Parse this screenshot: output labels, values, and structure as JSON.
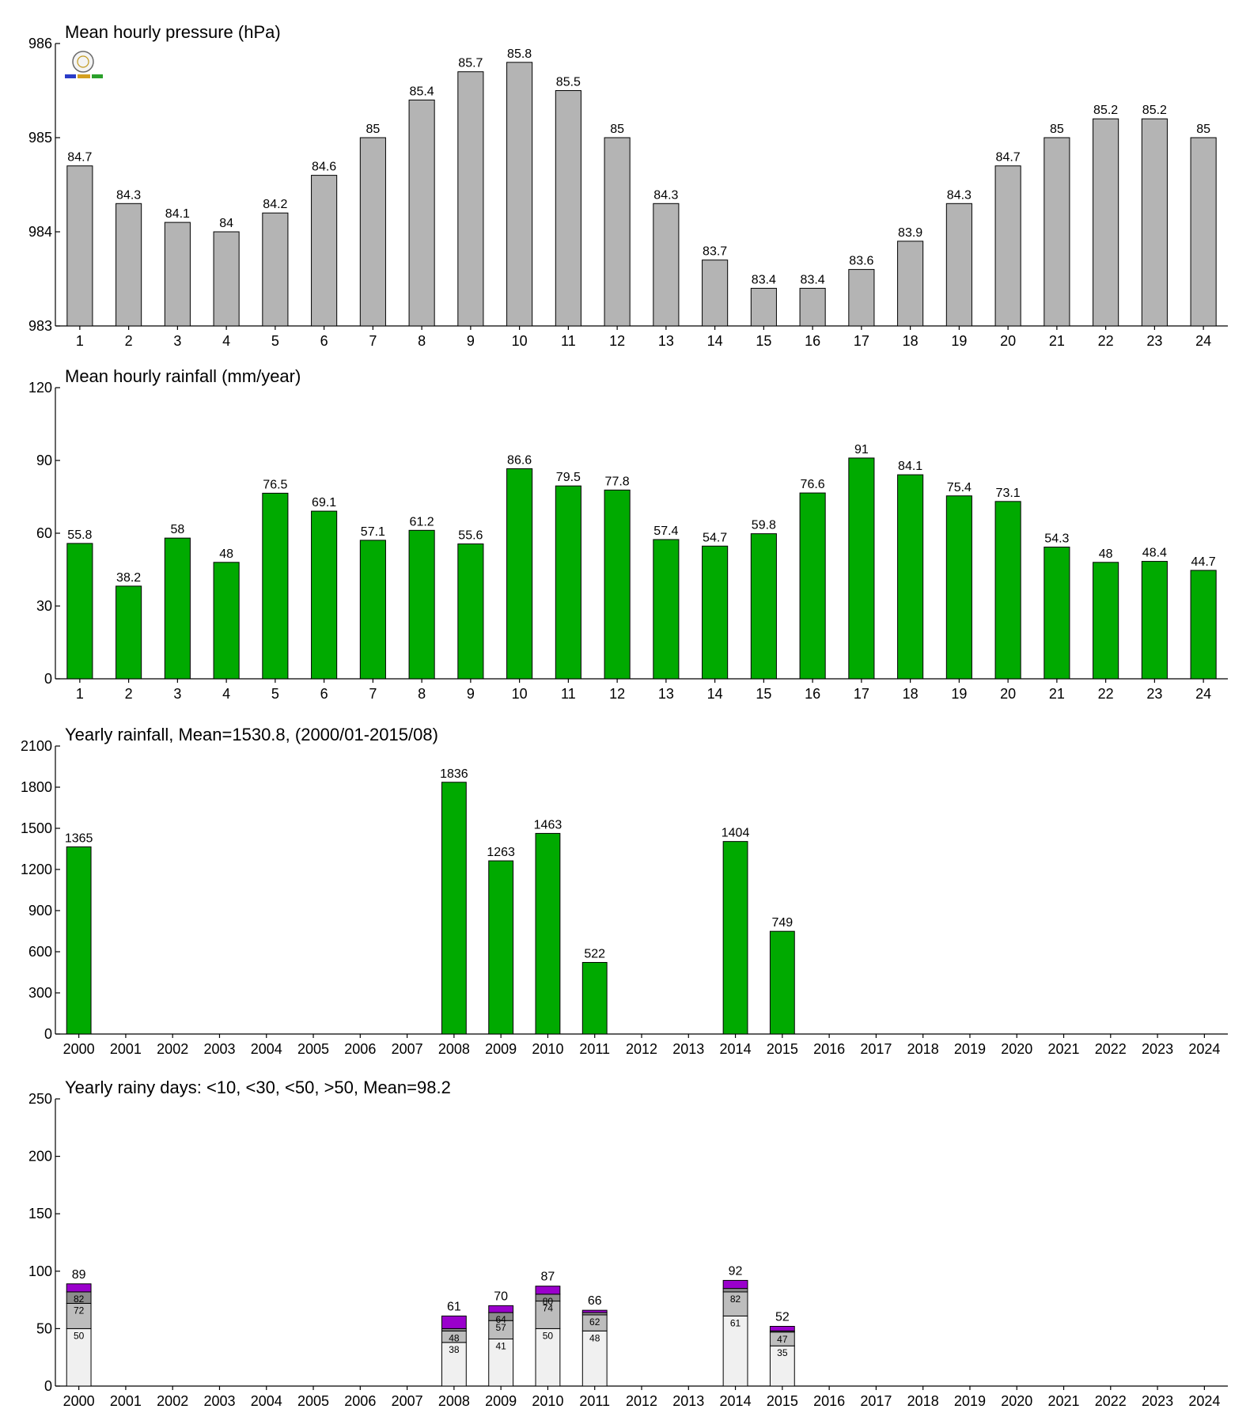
{
  "chart_data": [
    {
      "type": "bar",
      "title": "Mean hourly pressure (hPa)",
      "categories": [
        "1",
        "2",
        "3",
        "4",
        "5",
        "6",
        "7",
        "8",
        "9",
        "10",
        "11",
        "12",
        "13",
        "14",
        "15",
        "16",
        "17",
        "18",
        "19",
        "20",
        "21",
        "22",
        "23",
        "24"
      ],
      "values": [
        984.7,
        984.3,
        984.1,
        984.0,
        984.2,
        984.6,
        985.0,
        985.4,
        985.7,
        985.8,
        985.5,
        985.0,
        984.3,
        983.7,
        983.4,
        983.4,
        983.6,
        983.9,
        984.3,
        984.7,
        985.0,
        985.2,
        985.2,
        985.0
      ],
      "value_labels": [
        "84.7",
        "84.3",
        "84.1",
        "84",
        "84.2",
        "84.6",
        "85",
        "85.4",
        "85.7",
        "85.8",
        "85.5",
        "85",
        "84.3",
        "83.7",
        "83.4",
        "83.4",
        "83.6",
        "83.9",
        "84.3",
        "84.7",
        "85",
        "85.2",
        "85.2",
        "85"
      ],
      "ylim": [
        983,
        986
      ],
      "yticks": [
        "983",
        "984",
        "985",
        "986"
      ],
      "color": "#b4b4b4",
      "grid": false
    },
    {
      "type": "bar",
      "title": "Mean hourly rainfall (mm/year)",
      "categories": [
        "1",
        "2",
        "3",
        "4",
        "5",
        "6",
        "7",
        "8",
        "9",
        "10",
        "11",
        "12",
        "13",
        "14",
        "15",
        "16",
        "17",
        "18",
        "19",
        "20",
        "21",
        "22",
        "23",
        "24"
      ],
      "values": [
        55.8,
        38.2,
        58,
        48,
        76.5,
        69.1,
        57.1,
        61.2,
        55.6,
        86.6,
        79.5,
        77.8,
        57.4,
        54.7,
        59.8,
        76.6,
        91,
        84.1,
        75.4,
        73.1,
        54.3,
        48,
        48.4,
        44.7
      ],
      "value_labels": [
        "55.8",
        "38.2",
        "58",
        "48",
        "76.5",
        "69.1",
        "57.1",
        "61.2",
        "55.6",
        "86.6",
        "79.5",
        "77.8",
        "57.4",
        "54.7",
        "59.8",
        "76.6",
        "91",
        "84.1",
        "75.4",
        "73.1",
        "54.3",
        "48",
        "48.4",
        "44.7"
      ],
      "ylim": [
        0,
        120
      ],
      "yticks": [
        "0",
        "30",
        "60",
        "90",
        "120"
      ],
      "color": "#00aa00",
      "grid": false
    },
    {
      "type": "bar",
      "title": "Yearly rainfall, Mean=1530.8, (2000/01-2015/08)",
      "categories": [
        "2000",
        "2001",
        "2002",
        "2003",
        "2004",
        "2005",
        "2006",
        "2007",
        "2008",
        "2009",
        "2010",
        "2011",
        "2012",
        "2013",
        "2014",
        "2015",
        "2016",
        "2017",
        "2018",
        "2019",
        "2020",
        "2021",
        "2022",
        "2023",
        "2024"
      ],
      "values": [
        1365,
        null,
        null,
        null,
        null,
        null,
        null,
        null,
        1836,
        1263,
        1463,
        522,
        null,
        null,
        1404,
        749,
        null,
        null,
        null,
        null,
        null,
        null,
        null,
        null,
        null
      ],
      "value_labels": [
        "1365",
        "",
        "",
        "",
        "",
        "",
        "",
        "",
        "1836",
        "1263",
        "1463",
        "522",
        "",
        "",
        "1404",
        "749",
        "",
        "",
        "",
        "",
        "",
        "",
        "",
        "",
        ""
      ],
      "ylim": [
        0,
        2100
      ],
      "yticks": [
        "0",
        "300",
        "600",
        "900",
        "1200",
        "1500",
        "1800",
        "2100"
      ],
      "color": "#00aa00",
      "grid": false
    },
    {
      "type": "bar",
      "stacked": true,
      "title": "Yearly rainy days: <10, <30, <50, >50, Mean=98.2",
      "categories": [
        "2000",
        "2001",
        "2002",
        "2003",
        "2004",
        "2005",
        "2006",
        "2007",
        "2008",
        "2009",
        "2010",
        "2011",
        "2012",
        "2013",
        "2014",
        "2015",
        "2016",
        "2017",
        "2018",
        "2019",
        "2020",
        "2021",
        "2022",
        "2023",
        "2024"
      ],
      "cumulative": {
        "lt10": [
          50,
          null,
          null,
          null,
          null,
          null,
          null,
          null,
          38,
          41,
          50,
          48,
          null,
          null,
          61,
          35,
          null,
          null,
          null,
          null,
          null,
          null,
          null,
          null,
          null
        ],
        "lt30": [
          72,
          null,
          null,
          null,
          null,
          null,
          null,
          null,
          48,
          57,
          74,
          62,
          null,
          null,
          82,
          47,
          null,
          null,
          null,
          null,
          null,
          null,
          null,
          null,
          null
        ],
        "lt50": [
          82,
          null,
          null,
          null,
          null,
          null,
          null,
          null,
          50,
          64,
          80,
          64,
          null,
          null,
          85,
          48,
          null,
          null,
          null,
          null,
          null,
          null,
          null,
          null,
          null
        ],
        "total": [
          89,
          null,
          null,
          null,
          null,
          null,
          null,
          null,
          61,
          70,
          87,
          66,
          null,
          null,
          92,
          52,
          null,
          null,
          null,
          null,
          null,
          null,
          null,
          null,
          null
        ]
      },
      "segment_labels": {
        "lt10": [
          "50",
          "",
          "",
          "",
          "",
          "",
          "",
          "",
          "38",
          "41",
          "50",
          "48",
          "",
          "",
          "61",
          "35",
          "",
          "",
          "",
          "",
          "",
          "",
          "",
          "",
          ""
        ],
        "lt30": [
          "72",
          "",
          "",
          "",
          "",
          "",
          "",
          "",
          "48",
          "57",
          "74",
          "62",
          "",
          "",
          "82",
          "47",
          "",
          "",
          "",
          "",
          "",
          "",
          "",
          "",
          ""
        ],
        "lt50": [
          "82",
          "",
          "",
          "",
          "",
          "",
          "",
          "",
          "",
          "64",
          "80",
          "",
          "",
          "",
          "",
          "",
          "",
          "",
          "",
          "",
          "",
          "",
          "",
          "",
          ""
        ],
        "total": [
          "89",
          "",
          "",
          "",
          "",
          "",
          "",
          "",
          "61",
          "70",
          "87",
          "66",
          "",
          "",
          "92",
          "52",
          "",
          "",
          "",
          "",
          "",
          "",
          "",
          "",
          ""
        ]
      },
      "colors": {
        "lt10": "#f0f0f0",
        "lt30": "#bdbdbd",
        "lt50": "#8c8c8c",
        "total": "#9a00cc"
      },
      "ylim": [
        0,
        250
      ],
      "yticks": [
        "0",
        "50",
        "100",
        "150",
        "200",
        "250"
      ],
      "grid": false
    }
  ]
}
